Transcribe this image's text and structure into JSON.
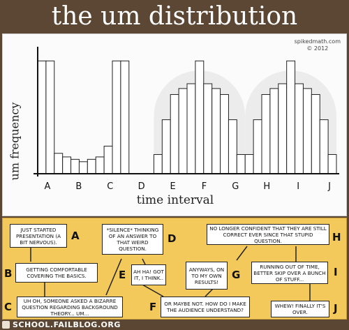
{
  "title": "the um distribution",
  "credit": {
    "site": "spikedmath.com",
    "year": "© 2012"
  },
  "chart_data": {
    "type": "bar",
    "title": "the um distribution",
    "xlabel": "time interval",
    "ylabel": "um frequency",
    "ylim": [
      0,
      10
    ],
    "grid": false,
    "tick_labels": [
      "A",
      "B",
      "C",
      "D",
      "E",
      "F",
      "G",
      "H",
      "I",
      "J"
    ],
    "values": [
      9.4,
      9.4,
      1.7,
      1.4,
      1.2,
      1.0,
      1.2,
      1.4,
      2.3,
      9.4,
      9.4,
      0,
      0,
      0,
      1.6,
      4.5,
      6.6,
      7.1,
      7.5,
      9.4,
      7.5,
      7.1,
      6.6,
      4.5,
      1.6,
      1.6,
      4.5,
      6.6,
      7.1,
      7.5,
      9.4,
      7.5,
      7.1,
      6.6,
      4.5,
      1.6
    ]
  },
  "notes": [
    {
      "letter": "A",
      "text": "Just started presentation (a bit nervous)."
    },
    {
      "letter": "B",
      "text": "Getting comfortable covering the basics."
    },
    {
      "letter": "C",
      "text": "Uh oh, someone asked a bizarre question regarding background theory... um..."
    },
    {
      "letter": "D",
      "text": "*Silence* thinking of an answer to that weird question."
    },
    {
      "letter": "E",
      "text": "Ah ha! Got it, I think.."
    },
    {
      "letter": "F",
      "text": "Or maybe not. How do I make the audience understand?"
    },
    {
      "letter": "G",
      "text": "Anyways, on to my own results!"
    },
    {
      "letter": "H",
      "text": "No longer confident that they are still correct ever since that stupid question."
    },
    {
      "letter": "I",
      "text": "Running out of time, better skip over a bunch of stuff..."
    },
    {
      "letter": "J",
      "text": "Whew! Finally it's over."
    }
  ],
  "footer": "SCHOOL.FAILBLOG.ORG",
  "colors": {
    "band": "#5b4733",
    "notes_bg": "#f4c95c",
    "bar_fill": "#ffffff",
    "bar_stroke": "#222222",
    "hump": "#ececec"
  }
}
